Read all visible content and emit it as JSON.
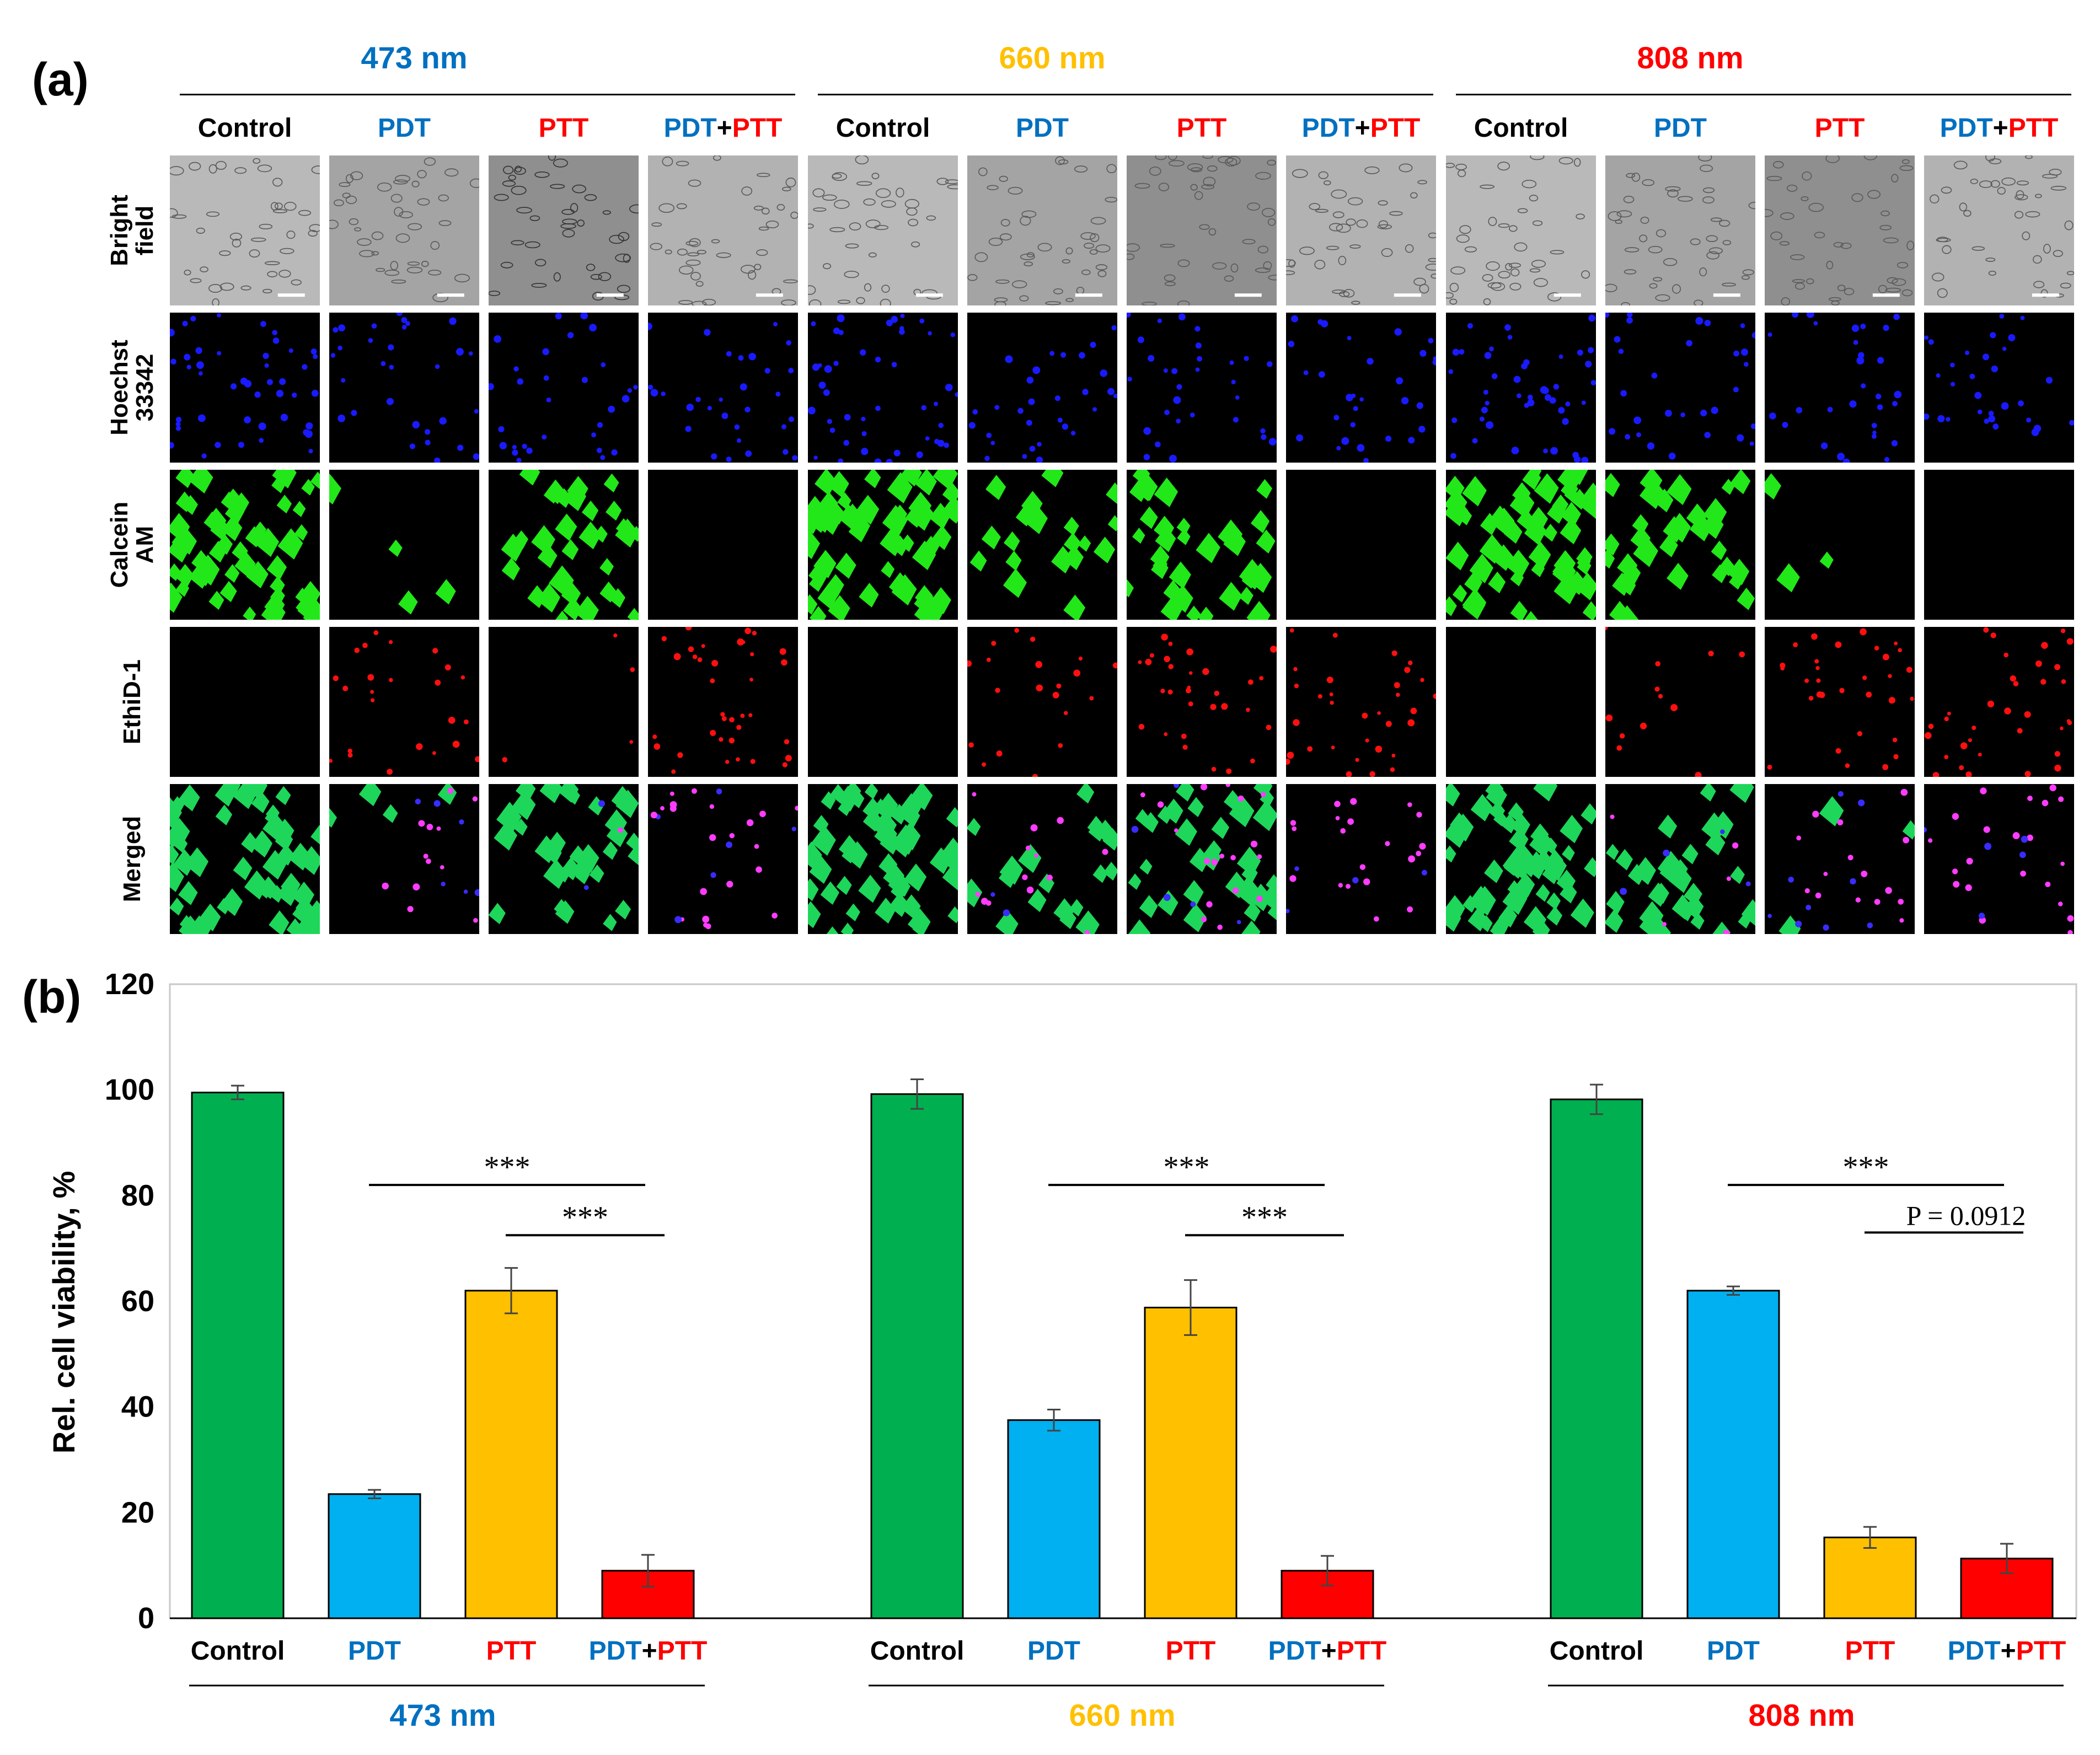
{
  "panel_a": {
    "label": "(a)",
    "wavelengths": [
      {
        "label": "473 nm",
        "color": "#0070c0"
      },
      {
        "label": "660 nm",
        "color": "#ffc000"
      },
      {
        "label": "808 nm",
        "color": "#ff0000"
      }
    ],
    "treatments": [
      "Control",
      "PDT",
      "PTT",
      "PDT+PTT"
    ],
    "treatment_parts": [
      [
        {
          "t": "Control",
          "c": "#000000"
        }
      ],
      [
        {
          "t": "PDT",
          "c": "#0070c0"
        }
      ],
      [
        {
          "t": "PTT",
          "c": "#ff0000"
        }
      ],
      [
        {
          "t": "PDT",
          "c": "#0070c0"
        },
        {
          "t": "+",
          "c": "#000000"
        },
        {
          "t": "PTT",
          "c": "#ff0000"
        }
      ]
    ],
    "rows": [
      {
        "label_line1": "Bright",
        "label_line2": "field",
        "kind": "bright"
      },
      {
        "label_line1": "Hoechst",
        "label_line2": "33342",
        "kind": "blue"
      },
      {
        "label_line1": "Calcein",
        "label_line2": "AM",
        "kind": "green"
      },
      {
        "label_line1": "EthiD-1",
        "label_line2": "",
        "kind": "red"
      },
      {
        "label_line1": "Merged",
        "label_line2": "",
        "kind": "merged"
      }
    ],
    "green_level": [
      [
        1.0,
        0.08,
        0.6,
        0.0
      ],
      [
        1.0,
        0.35,
        0.6,
        0.0
      ],
      [
        1.0,
        0.6,
        0.06,
        0.0
      ]
    ],
    "red_level": [
      [
        0.0,
        0.6,
        0.1,
        0.9
      ],
      [
        0.0,
        0.5,
        0.75,
        0.8
      ],
      [
        0.0,
        0.3,
        0.8,
        0.85
      ]
    ]
  },
  "panel_b": {
    "label": "(b)"
  },
  "chart_data": {
    "type": "bar",
    "title": "",
    "xlabel": "",
    "ylabel": "Rel. cell viability, %",
    "ylim": [
      0,
      120
    ],
    "yticks": [
      0,
      20,
      40,
      60,
      80,
      100,
      120
    ],
    "groups": [
      "473 nm",
      "660 nm",
      "808 nm"
    ],
    "group_colors": [
      "#0070c0",
      "#ffc000",
      "#ff0000"
    ],
    "categories": [
      "Control",
      "PDT",
      "PTT",
      "PDT+PTT"
    ],
    "bar_colors": [
      "#00b050",
      "#00b0f0",
      "#ffc000",
      "#ff0000"
    ],
    "values": [
      [
        99.5,
        23.5,
        62.0,
        9.0
      ],
      [
        99.2,
        37.5,
        58.8,
        9.0
      ],
      [
        98.2,
        62.0,
        15.3,
        11.3
      ]
    ],
    "errors": [
      [
        1.3,
        0.8,
        4.3,
        3.0
      ],
      [
        2.8,
        2.0,
        5.2,
        2.8
      ],
      [
        2.8,
        0.8,
        2.0,
        2.8
      ]
    ],
    "annotations": [
      {
        "group": 0,
        "from": 1,
        "to": 3,
        "y": 82,
        "text": "***"
      },
      {
        "group": 0,
        "from": 2,
        "to": 3,
        "y": 72.5,
        "text": "***"
      },
      {
        "group": 1,
        "from": 1,
        "to": 3,
        "y": 82,
        "text": "***"
      },
      {
        "group": 1,
        "from": 2,
        "to": 3,
        "y": 72.5,
        "text": "***"
      },
      {
        "group": 2,
        "from": 1,
        "to": 3,
        "y": 82,
        "text": "***"
      },
      {
        "group": 2,
        "from": 2,
        "to": 3,
        "y": 73,
        "text": "P = 0.0912"
      }
    ]
  }
}
